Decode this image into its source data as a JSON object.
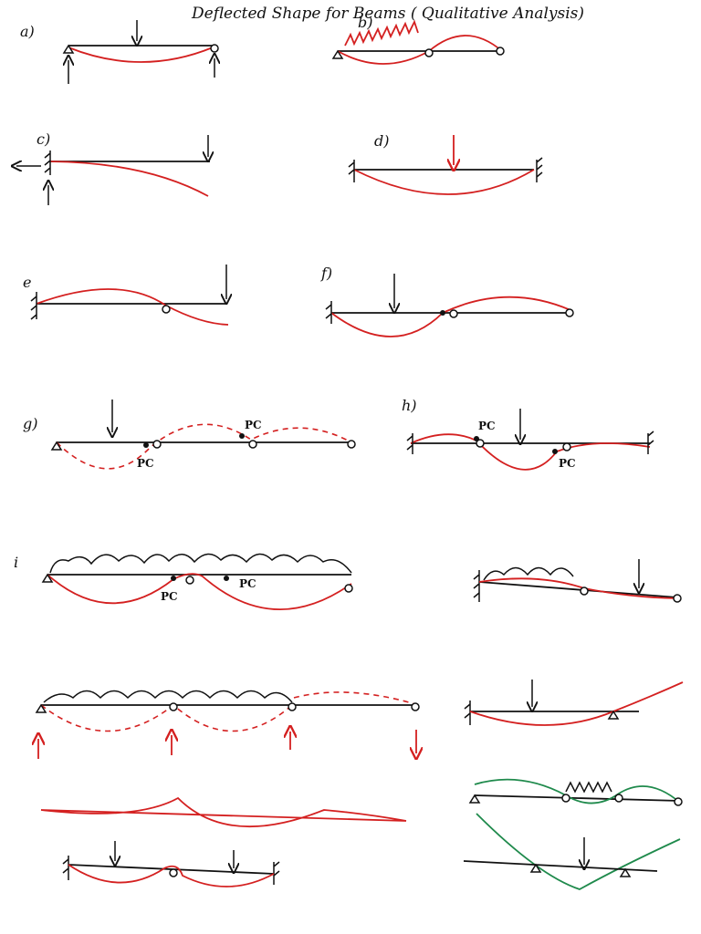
{
  "title": "Deflected Shape for Beams ( Qualitative Analysis)",
  "panels": [
    {
      "label": "a)"
    },
    {
      "label": "b)"
    },
    {
      "label": "c)"
    },
    {
      "label": "d)"
    },
    {
      "label": "e"
    },
    {
      "label": "f)"
    },
    {
      "label": "g)",
      "notes": [
        "PC",
        "PC"
      ]
    },
    {
      "label": "h)",
      "notes": [
        "PC",
        "PC"
      ]
    },
    {
      "label": "i",
      "notes": [
        "PC",
        "PC"
      ]
    }
  ]
}
